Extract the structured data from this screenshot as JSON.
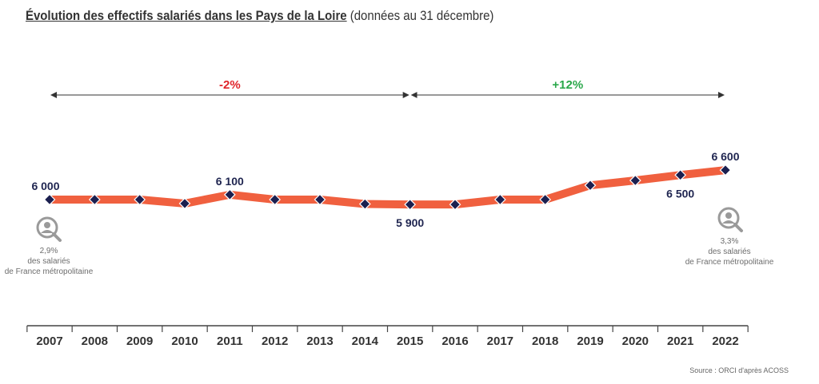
{
  "title": {
    "main": "Évolution des effectifs salariés dans les Pays de la Loire",
    "sub": " (données au 31 décembre)"
  },
  "source": "Source : ORCI d'après ACOSS",
  "colors": {
    "line": "#f0603f",
    "marker": "#1b1f4f",
    "negative": "#e0242a",
    "positive": "#2aa84a",
    "text": "#1f2550"
  },
  "chart_data": {
    "type": "line",
    "categories": [
      "2007",
      "2008",
      "2009",
      "2010",
      "2011",
      "2012",
      "2013",
      "2014",
      "2015",
      "2016",
      "2017",
      "2018",
      "2019",
      "2020",
      "2021",
      "2022"
    ],
    "series": [
      {
        "values": [
          6000,
          6000,
          6000,
          5920,
          6100,
          6000,
          6000,
          5910,
          5900,
          5900,
          6000,
          6000,
          6290,
          6390,
          6500,
          6600
        ]
      }
    ],
    "data_labels": [
      {
        "index": 0,
        "text": "6 000",
        "position": "above"
      },
      {
        "index": 4,
        "text": "6 100",
        "position": "above"
      },
      {
        "index": 8,
        "text": "5 900",
        "position": "below"
      },
      {
        "index": 14,
        "text": "6 500",
        "position": "below"
      },
      {
        "index": 15,
        "text": "6 600",
        "position": "above"
      }
    ],
    "annotations": [
      {
        "from": 0,
        "to": 8,
        "text": "-2%",
        "color": "negative"
      },
      {
        "from": 8,
        "to": 15,
        "text": "+12%",
        "color": "positive"
      }
    ],
    "ylim": [
      4000,
      8000
    ],
    "grid": false,
    "legend": "none"
  },
  "notes": [
    {
      "pct": "2,9%",
      "line1": "des salariés",
      "line2": "de France métropolitaine",
      "icon": "magnifier-person-icon"
    },
    {
      "pct": "3,3%",
      "line1": "des salariés",
      "line2": "de France métropolitaine",
      "icon": "magnifier-person-icon"
    }
  ]
}
